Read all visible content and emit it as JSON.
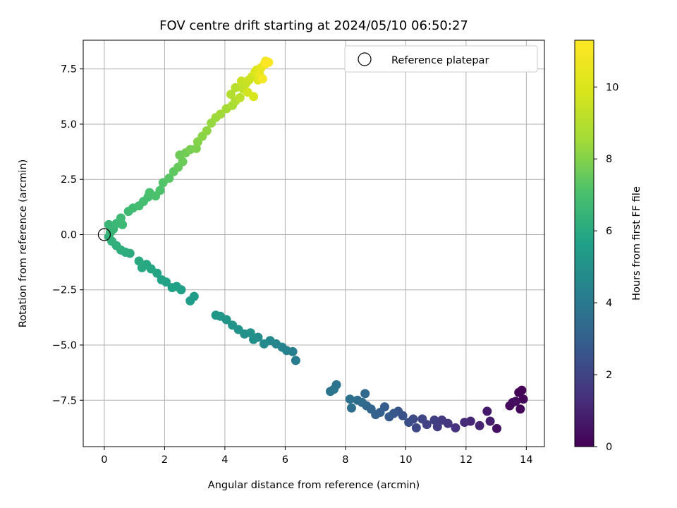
{
  "chart_data": {
    "type": "scatter",
    "title": "FOV centre drift starting at 2024/05/10 06:50:27",
    "xlabel": "Angular distance from reference (arcmin)",
    "ylabel": "Rotation from reference (arcmin)",
    "xlim": [
      -0.7,
      14.6
    ],
    "ylim": [
      -9.6,
      8.8
    ],
    "xticks": [
      0,
      2,
      4,
      6,
      8,
      10,
      12,
      14
    ],
    "yticks": [
      -7.5,
      -5.0,
      -2.5,
      0.0,
      2.5,
      5.0,
      7.5
    ],
    "xtick_labels": [
      "0",
      "2",
      "4",
      "6",
      "8",
      "10",
      "12",
      "14"
    ],
    "ytick_labels": [
      "−7.5",
      "−5.0",
      "−2.5",
      "0.0",
      "2.5",
      "5.0",
      "7.5"
    ],
    "grid": true,
    "legend": {
      "position": "top-right",
      "entries": [
        {
          "label": "Reference platepar",
          "marker": "open-circle"
        }
      ]
    },
    "reference_point": {
      "x": 0,
      "y": 0
    },
    "colorbar": {
      "label": "Hours from first FF file",
      "colormap": "viridis",
      "range": [
        0,
        11.3
      ],
      "ticks": [
        0,
        2,
        4,
        6,
        8,
        10
      ],
      "tick_labels": [
        "0",
        "2",
        "4",
        "6",
        "8",
        "10"
      ]
    },
    "series": [
      {
        "points": [
          [
            13.85,
            -7.05,
            0.05
          ],
          [
            13.75,
            -7.15,
            0.1
          ],
          [
            13.9,
            -7.45,
            0.15
          ],
          [
            13.8,
            -7.9,
            0.2
          ],
          [
            13.55,
            -7.6,
            0.25
          ],
          [
            13.45,
            -7.75,
            0.3
          ],
          [
            13.65,
            -7.55,
            0.35
          ],
          [
            13.02,
            -8.78,
            0.5
          ],
          [
            12.7,
            -8.0,
            0.7
          ],
          [
            12.8,
            -8.45,
            0.85
          ],
          [
            12.45,
            -8.65,
            1.0
          ],
          [
            12.15,
            -8.45,
            1.1
          ],
          [
            11.95,
            -8.5,
            1.25
          ],
          [
            11.65,
            -8.75,
            1.4
          ],
          [
            11.4,
            -8.55,
            1.55
          ],
          [
            11.2,
            -8.4,
            1.65
          ],
          [
            11.05,
            -8.7,
            1.75
          ],
          [
            10.95,
            -8.4,
            1.85
          ],
          [
            10.7,
            -8.6,
            1.95
          ],
          [
            10.55,
            -8.35,
            2.05
          ],
          [
            10.35,
            -8.75,
            2.15
          ],
          [
            10.25,
            -8.35,
            2.25
          ],
          [
            10.1,
            -8.5,
            2.35
          ],
          [
            9.9,
            -8.2,
            2.45
          ],
          [
            9.75,
            -8.0,
            2.55
          ],
          [
            9.6,
            -8.1,
            2.65
          ],
          [
            9.45,
            -8.25,
            2.75
          ],
          [
            9.3,
            -7.8,
            2.85
          ],
          [
            9.15,
            -8.05,
            2.95
          ],
          [
            9.0,
            -8.15,
            3.05
          ],
          [
            8.85,
            -7.9,
            3.15
          ],
          [
            8.7,
            -7.75,
            3.25
          ],
          [
            8.65,
            -7.2,
            3.3
          ],
          [
            8.55,
            -7.6,
            3.4
          ],
          [
            8.4,
            -7.5,
            3.5
          ],
          [
            8.2,
            -7.85,
            3.6
          ],
          [
            8.15,
            -7.45,
            3.65
          ],
          [
            7.7,
            -6.8,
            3.75
          ],
          [
            7.5,
            -7.1,
            3.8
          ],
          [
            7.62,
            -7.0,
            3.85
          ],
          [
            6.35,
            -5.7,
            4.1
          ],
          [
            6.25,
            -5.3,
            4.2
          ],
          [
            6.05,
            -5.25,
            4.3
          ],
          [
            5.9,
            -5.1,
            4.4
          ],
          [
            5.7,
            -4.95,
            4.5
          ],
          [
            5.5,
            -4.8,
            4.6
          ],
          [
            5.3,
            -4.95,
            4.7
          ],
          [
            5.1,
            -4.65,
            4.8
          ],
          [
            4.95,
            -4.75,
            4.9
          ],
          [
            4.85,
            -4.45,
            4.95
          ],
          [
            4.65,
            -4.5,
            5.0
          ],
          [
            4.45,
            -4.3,
            5.05
          ],
          [
            4.25,
            -4.1,
            5.1
          ],
          [
            4.05,
            -3.85,
            5.15
          ],
          [
            3.85,
            -3.7,
            5.2
          ],
          [
            3.7,
            -3.65,
            5.25
          ],
          [
            2.98,
            -2.8,
            5.45
          ],
          [
            2.85,
            -3.0,
            5.5
          ],
          [
            2.55,
            -2.5,
            5.55
          ],
          [
            2.4,
            -2.35,
            5.6
          ],
          [
            2.25,
            -2.4,
            5.65
          ],
          [
            2.05,
            -2.15,
            5.7
          ],
          [
            1.9,
            -2.05,
            5.75
          ],
          [
            1.75,
            -1.75,
            5.8
          ],
          [
            1.55,
            -1.55,
            5.85
          ],
          [
            1.4,
            -1.35,
            5.9
          ],
          [
            1.25,
            -1.5,
            5.95
          ],
          [
            1.15,
            -1.2,
            6.0
          ],
          [
            0.85,
            -0.85,
            6.1
          ],
          [
            0.7,
            -0.8,
            6.15
          ],
          [
            0.55,
            -0.7,
            6.2
          ],
          [
            0.4,
            -0.5,
            6.25
          ],
          [
            0.25,
            -0.3,
            6.3
          ],
          [
            0.15,
            -0.1,
            6.35
          ],
          [
            0.2,
            0.1,
            6.45
          ],
          [
            0.3,
            0.25,
            6.5
          ],
          [
            0.15,
            0.45,
            6.55
          ],
          [
            0.4,
            0.5,
            6.6
          ],
          [
            0.6,
            0.45,
            6.65
          ],
          [
            0.55,
            0.75,
            6.7
          ],
          [
            0.8,
            1.05,
            6.75
          ],
          [
            0.95,
            1.2,
            6.8
          ],
          [
            1.15,
            1.3,
            6.85
          ],
          [
            1.3,
            1.5,
            6.9
          ],
          [
            1.45,
            1.7,
            6.95
          ],
          [
            1.5,
            1.9,
            7.0
          ],
          [
            1.7,
            1.75,
            7.05
          ],
          [
            1.85,
            2.0,
            7.1
          ],
          [
            1.95,
            2.35,
            7.2
          ],
          [
            2.15,
            2.55,
            7.3
          ],
          [
            2.3,
            2.85,
            7.4
          ],
          [
            2.45,
            3.05,
            7.5
          ],
          [
            2.6,
            3.3,
            7.6
          ],
          [
            2.5,
            3.6,
            7.65
          ],
          [
            2.7,
            3.7,
            7.7
          ],
          [
            2.85,
            3.85,
            7.8
          ],
          [
            3.05,
            3.9,
            7.9
          ],
          [
            3.1,
            4.2,
            8.0
          ],
          [
            3.25,
            4.45,
            8.1
          ],
          [
            3.4,
            4.7,
            8.2
          ],
          [
            3.55,
            5.05,
            8.3
          ],
          [
            3.7,
            5.3,
            8.4
          ],
          [
            3.85,
            5.45,
            8.5
          ],
          [
            4.05,
            5.7,
            8.6
          ],
          [
            4.25,
            5.85,
            8.7
          ],
          [
            4.35,
            6.05,
            8.85
          ],
          [
            4.2,
            6.35,
            8.95
          ],
          [
            4.35,
            6.65,
            9.05
          ],
          [
            4.5,
            6.2,
            9.15
          ],
          [
            4.6,
            6.6,
            9.25
          ],
          [
            4.7,
            6.85,
            9.35
          ],
          [
            4.55,
            6.95,
            9.45
          ],
          [
            4.8,
            7.0,
            9.55
          ],
          [
            4.9,
            7.15,
            9.65
          ],
          [
            4.75,
            6.45,
            9.75
          ],
          [
            4.95,
            6.25,
            9.85
          ],
          [
            5.0,
            7.35,
            9.95
          ],
          [
            5.05,
            7.45,
            10.05
          ],
          [
            5.1,
            7.0,
            10.2
          ],
          [
            5.2,
            7.55,
            10.35
          ],
          [
            5.15,
            7.25,
            10.5
          ],
          [
            5.3,
            7.7,
            10.65
          ],
          [
            5.35,
            7.85,
            10.8
          ],
          [
            5.25,
            7.05,
            10.95
          ],
          [
            5.45,
            7.8,
            11.1
          ],
          [
            5.38,
            7.75,
            11.3
          ]
        ]
      }
    ]
  }
}
